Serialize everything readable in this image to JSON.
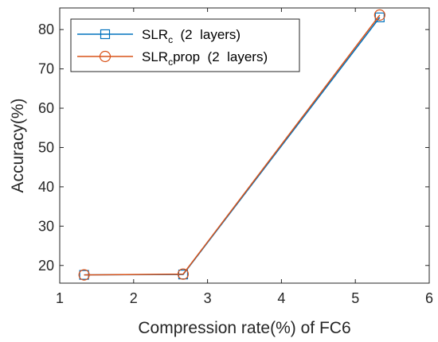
{
  "chart_data": {
    "type": "line",
    "xlabel": "Compression rate(%) of FC6",
    "ylabel": "Accuracy(%)",
    "xlim": [
      1,
      6
    ],
    "ylim": [
      15.5,
      85.5
    ],
    "xticks": [
      1,
      2,
      3,
      4,
      5,
      6
    ],
    "yticks": [
      20,
      30,
      40,
      50,
      60,
      70,
      80
    ],
    "grid": false,
    "legend_position": "top-left",
    "series": [
      {
        "name": "SLRc  (2  layers)",
        "name_base": "SLR",
        "name_sub": "c",
        "name_rest": "  (2  layers)",
        "color": "#0072BD",
        "marker": "square",
        "x": [
          1.33,
          2.67,
          5.33
        ],
        "y": [
          17.6,
          17.7,
          83.1
        ]
      },
      {
        "name": "SLRcprop  (2  layers)",
        "name_base": "SLR",
        "name_sub": "c",
        "name_rest": "prop  (2  layers)",
        "color": "#D95319",
        "marker": "circle",
        "x": [
          1.33,
          2.67,
          5.33
        ],
        "y": [
          17.6,
          17.8,
          83.7
        ]
      }
    ]
  }
}
